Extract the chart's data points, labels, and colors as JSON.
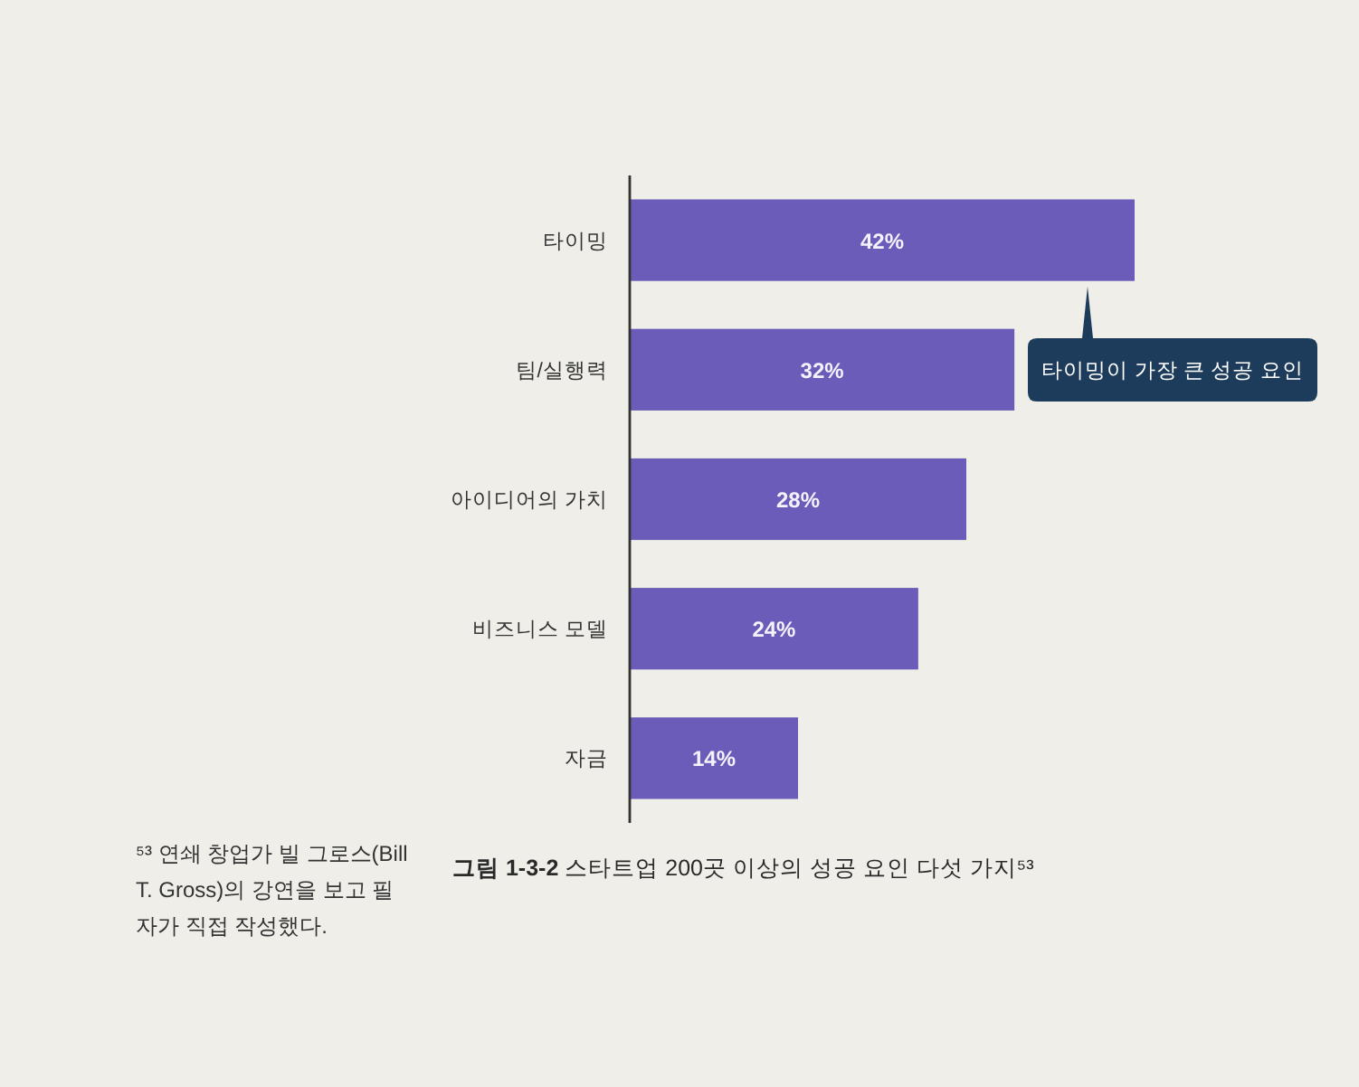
{
  "chart_data": {
    "type": "bar",
    "orientation": "horizontal",
    "title": "그림 1-3-2 스타트업 200곳 이상의 성공 요인 다섯 가지⁵³",
    "categories": [
      "타이밍",
      "팀/실행력",
      "아이디어의 가치",
      "비즈니스 모델",
      "자금"
    ],
    "values": [
      42,
      32,
      28,
      24,
      14
    ],
    "value_labels": [
      "42%",
      "32%",
      "28%",
      "24%",
      "14%"
    ],
    "color": "#6a5cb8",
    "annotations": [
      "타이밍이 가장 큰 성공 요인",
      "⁵³ 연쇄 창업가 빌 그로스(Bill T. Gross)의 강연을 보고 필자가 직접 작성했다."
    ]
  }
}
